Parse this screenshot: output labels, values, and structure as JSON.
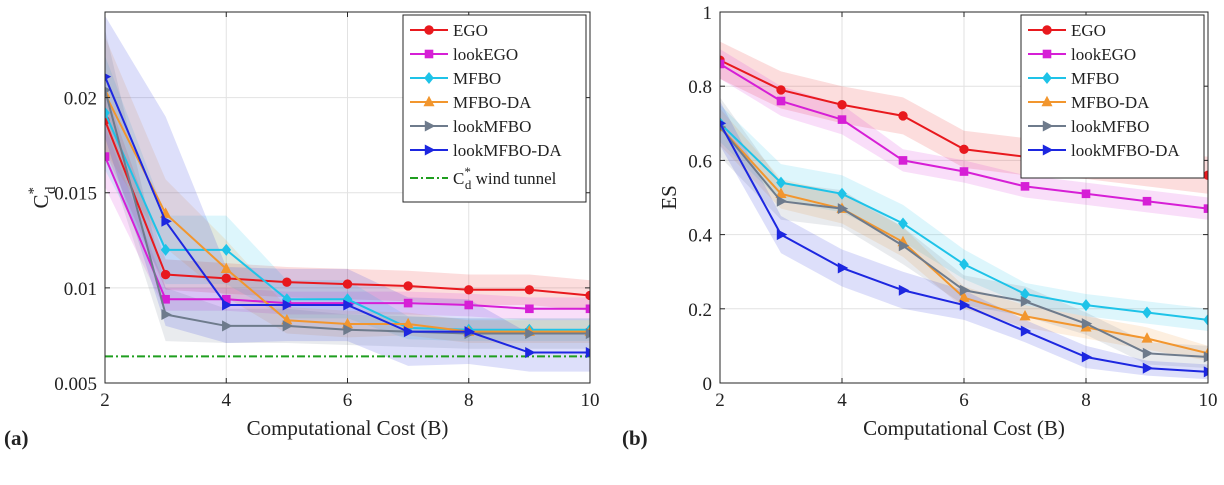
{
  "chart_data": [
    {
      "id": "a",
      "panel_label": "(a)",
      "type": "line",
      "xlabel": "Computational Cost (B)",
      "ylabel": {
        "base": "C",
        "sup": "*",
        "sub": "d"
      },
      "xlim": [
        2,
        10
      ],
      "ylim": [
        0.005,
        0.0245
      ],
      "xticks": [
        2,
        4,
        6,
        8,
        10
      ],
      "yticks": [
        0.005,
        0.01,
        0.015,
        0.02
      ],
      "ytick_labels": [
        "0.005",
        "0.01",
        "0.015",
        "0.02"
      ],
      "grid": true,
      "legend_position": "top-right",
      "x": [
        2,
        3,
        4,
        5,
        6,
        7,
        8,
        9,
        10
      ],
      "series": [
        {
          "name": "EGO",
          "color": "#e8191e",
          "marker": "circle",
          "values": [
            0.0188,
            0.0107,
            0.0105,
            0.0103,
            0.0102,
            0.0101,
            0.0099,
            0.0099,
            0.0096
          ],
          "band": [
            0.0016,
            0.0008,
            0.0008,
            0.0008,
            0.0008,
            0.0008,
            0.0008,
            0.0008,
            0.0008
          ]
        },
        {
          "name": "lookEGO",
          "color": "#d61fd6",
          "marker": "square",
          "values": [
            0.0169,
            0.0094,
            0.0094,
            0.0092,
            0.0092,
            0.0092,
            0.0091,
            0.0089,
            0.0089
          ],
          "band": [
            0.0016,
            0.0006,
            0.0006,
            0.0006,
            0.0006,
            0.0006,
            0.0006,
            0.0006,
            0.0006
          ]
        },
        {
          "name": "MFBO",
          "color": "#1ec3e8",
          "marker": "diamond",
          "values": [
            0.0192,
            0.012,
            0.012,
            0.0094,
            0.0094,
            0.0079,
            0.0078,
            0.0078,
            0.0078
          ],
          "band": [
            0.003,
            0.0018,
            0.0018,
            0.001,
            0.001,
            0.0006,
            0.0006,
            0.0006,
            0.0006
          ]
        },
        {
          "name": "MFBO-DA",
          "color": "#f2962e",
          "marker": "triangle-up",
          "values": [
            0.0202,
            0.0139,
            0.011,
            0.0083,
            0.0081,
            0.0081,
            0.0077,
            0.0077,
            0.0077
          ],
          "band": [
            0.003,
            0.0018,
            0.0015,
            0.0007,
            0.0007,
            0.0006,
            0.0006,
            0.0006,
            0.0006
          ]
        },
        {
          "name": "lookMFBO",
          "color": "#6e7b8c",
          "marker": "triangle-right",
          "values": [
            0.0204,
            0.0086,
            0.008,
            0.008,
            0.0078,
            0.0077,
            0.0076,
            0.0076,
            0.0076
          ],
          "band": [
            0.0032,
            0.0014,
            0.0009,
            0.0009,
            0.0008,
            0.0008,
            0.0008,
            0.0008,
            0.0008
          ]
        },
        {
          "name": "lookMFBO-DA",
          "color": "#1d27e0",
          "marker": "triangle-right",
          "values": [
            0.0211,
            0.0135,
            0.0091,
            0.0091,
            0.0091,
            0.0077,
            0.0077,
            0.0066,
            0.0066
          ],
          "band": [
            0.0032,
            0.0055,
            0.002,
            0.0019,
            0.0019,
            0.0018,
            0.0017,
            0.001,
            0.001
          ]
        }
      ],
      "reference_line": {
        "label_base": "C",
        "label_sup": "*",
        "label_sub": "d",
        "label_suffix": " wind tunnel",
        "value": 0.0064,
        "color": "#1f9e1f"
      }
    },
    {
      "id": "b",
      "panel_label": "(b)",
      "type": "line",
      "xlabel": "Computational Cost (B)",
      "ylabel": "ES",
      "xlim": [
        2,
        10
      ],
      "ylim": [
        0,
        1
      ],
      "xticks": [
        2,
        4,
        6,
        8,
        10
      ],
      "yticks": [
        0,
        0.2,
        0.4,
        0.6,
        0.8,
        1
      ],
      "ytick_labels": [
        "0",
        "0.2",
        "0.4",
        "0.6",
        "0.8",
        "1"
      ],
      "grid": true,
      "legend_position": "top-right",
      "x": [
        2,
        3,
        4,
        5,
        6,
        7,
        8,
        9,
        10
      ],
      "series": [
        {
          "name": "EGO",
          "color": "#e8191e",
          "marker": "circle",
          "values": [
            0.87,
            0.79,
            0.75,
            0.72,
            0.63,
            0.61,
            0.6,
            0.58,
            0.56
          ],
          "band": [
            0.05,
            0.05,
            0.05,
            0.05,
            0.05,
            0.05,
            0.05,
            0.05,
            0.05
          ]
        },
        {
          "name": "lookEGO",
          "color": "#d61fd6",
          "marker": "square",
          "values": [
            0.86,
            0.76,
            0.71,
            0.6,
            0.57,
            0.53,
            0.51,
            0.49,
            0.47
          ],
          "band": [
            0.04,
            0.04,
            0.04,
            0.03,
            0.03,
            0.03,
            0.03,
            0.03,
            0.03
          ]
        },
        {
          "name": "MFBO",
          "color": "#1ec3e8",
          "marker": "diamond",
          "values": [
            0.7,
            0.54,
            0.51,
            0.43,
            0.32,
            0.24,
            0.21,
            0.19,
            0.17
          ],
          "band": [
            0.05,
            0.05,
            0.05,
            0.05,
            0.04,
            0.03,
            0.03,
            0.03,
            0.03
          ]
        },
        {
          "name": "MFBO-DA",
          "color": "#f2962e",
          "marker": "triangle-up",
          "values": [
            0.69,
            0.51,
            0.47,
            0.38,
            0.23,
            0.18,
            0.15,
            0.12,
            0.08
          ],
          "band": [
            0.05,
            0.04,
            0.04,
            0.04,
            0.03,
            0.03,
            0.03,
            0.03,
            0.02
          ]
        },
        {
          "name": "lookMFBO",
          "color": "#6e7b8c",
          "marker": "triangle-right",
          "values": [
            0.69,
            0.49,
            0.47,
            0.37,
            0.25,
            0.22,
            0.16,
            0.08,
            0.07
          ],
          "band": [
            0.08,
            0.05,
            0.05,
            0.05,
            0.04,
            0.04,
            0.03,
            0.03,
            0.03
          ]
        },
        {
          "name": "lookMFBO-DA",
          "color": "#1d27e0",
          "marker": "triangle-right",
          "values": [
            0.7,
            0.4,
            0.31,
            0.25,
            0.21,
            0.14,
            0.07,
            0.04,
            0.03
          ],
          "band": [
            0.06,
            0.05,
            0.05,
            0.05,
            0.04,
            0.03,
            0.03,
            0.02,
            0.02
          ]
        }
      ]
    }
  ]
}
